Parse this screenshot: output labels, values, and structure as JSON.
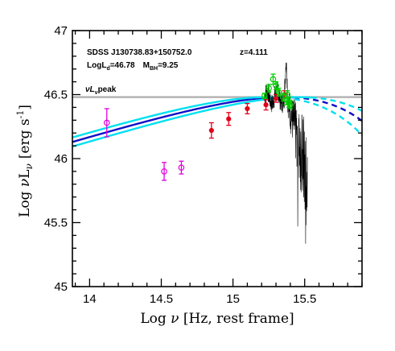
{
  "chart_data": {
    "type": "scatter",
    "xlim": [
      13.88,
      15.9
    ],
    "ylim": [
      45.0,
      47.0
    ],
    "x_ticks": [
      "14",
      "14.5",
      "15",
      "15.5"
    ],
    "x_tick_values": [
      14.0,
      14.5,
      15.0,
      15.5
    ],
    "y_ticks": [
      "45",
      "45.5",
      "46",
      "46.5",
      "47"
    ],
    "y_tick_values": [
      45.0,
      45.5,
      46.0,
      46.5,
      47.0
    ],
    "xlabel_prefix": "Log ",
    "xlabel_symbol": "ν",
    "xlabel_suffix": " [Hz, rest frame]",
    "ylabel_prefix": "Log ",
    "ylabel_symbol": "ν",
    "ylabel_sub": "L",
    "ylabel_nu_sub": "ν",
    "ylabel_unit": "[erg s",
    "ylabel_exp": "-1",
    "ylabel_close": "]",
    "annotations": {
      "object": "SDSS J130738.83+150752.0",
      "redshift": "z=4.111",
      "log_ld_prefix": "LogL",
      "log_ld_sub": "d",
      "log_ld_value": "=46.78",
      "mbh_prefix": "M",
      "mbh_sub": "BH",
      "mbh_value": "=9.25",
      "peak_prefix": "νL",
      "peak_sub": "ν",
      "peak_suffix": "peak"
    },
    "peak_line_y": 46.48,
    "colors": {
      "peak_line": "#b4b4b4",
      "model": "#1010c8",
      "model_bounds": "#00e0f0",
      "red_points": "#e0001a",
      "magenta_points": "#e000e0",
      "green_points": "#00d000",
      "spectrum": "#000000"
    },
    "series": [
      {
        "type": "disk_model",
        "peak_x": 15.35,
        "peak_y": 46.48,
        "lo_slope": 0.333,
        "curve_k": 4.0,
        "solid_until": 15.43
      },
      {
        "type": "disk_model_upper",
        "peak_x": 15.24,
        "peak_y": 46.48,
        "lo_slope": 0.333,
        "curve_k": 4.0,
        "solid_until": 15.3
      },
      {
        "type": "disk_model_lower",
        "peak_x": 15.46,
        "peak_y": 46.48,
        "lo_slope": 0.333,
        "curve_k": 4.0,
        "solid_until": 15.55
      },
      {
        "type": "points_red",
        "x": [
          14.85,
          14.97,
          15.1,
          15.23,
          15.3,
          15.36
        ],
        "y": [
          46.22,
          46.31,
          46.39,
          46.42,
          46.47,
          46.5
        ],
        "yerr": [
          0.06,
          0.05,
          0.04,
          0.04,
          0.03,
          0.03
        ]
      },
      {
        "type": "points_magenta",
        "x": [
          14.12,
          14.52,
          14.64
        ],
        "y": [
          46.28,
          45.9,
          45.93
        ],
        "yerr": [
          0.11,
          0.07,
          0.05
        ]
      },
      {
        "type": "points_green",
        "x": [
          15.22,
          15.25,
          15.28,
          15.3,
          15.32,
          15.35,
          15.37,
          15.38,
          15.39,
          15.4
        ],
        "y": [
          46.49,
          46.55,
          46.62,
          46.57,
          46.52,
          46.48,
          46.46,
          46.5,
          46.44,
          46.42
        ],
        "yerr": [
          0.02,
          0.03,
          0.04,
          0.03,
          0.03,
          0.03,
          0.04,
          0.03,
          0.04,
          0.03
        ]
      }
    ],
    "spectrum_range": [
      15.22,
      15.52
    ]
  }
}
